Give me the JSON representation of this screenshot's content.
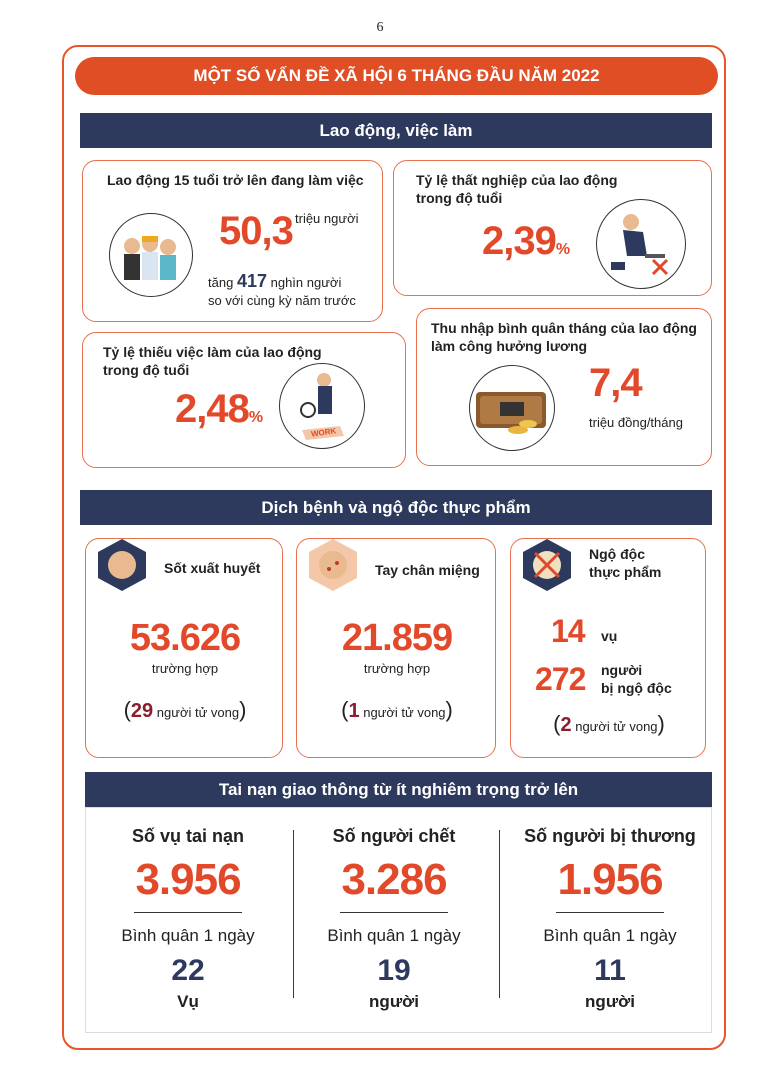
{
  "page_number": "6",
  "title": "MỘT SỐ VẤN ĐỀ XÃ HỘI 6 THÁNG ĐẦU NĂM 2022",
  "labor": {
    "heading": "Lao động, việc làm",
    "employed": {
      "title": "Lao động 15 tuổi trở lên đang làm việc",
      "value": "50,3",
      "unit": "triệu người",
      "note_prefix": "tăng",
      "note_value": "417",
      "note_suffix": "nghìn người",
      "note_line2": "so với cùng kỳ năm trước"
    },
    "unemployment": {
      "title": [
        "Tỷ lệ thất nghiệp của lao động",
        "trong độ tuổi"
      ],
      "value": "2,39",
      "unit": "%"
    },
    "underemployment": {
      "title": [
        "Tỷ lệ thiếu việc làm của lao động",
        "trong độ tuổi"
      ],
      "value": "2,48",
      "unit": "%",
      "icon_text": "WORK"
    },
    "income": {
      "title": [
        "Thu nhập bình quân tháng của lao động",
        "làm công hưởng lương"
      ],
      "value": "7,4",
      "unit": "triệu đồng/tháng"
    }
  },
  "disease": {
    "heading": "Dịch bệnh và ngộ độc thực phẩm",
    "dengue": {
      "title": "Sốt xuất huyết",
      "value": "53.626",
      "unit": "trường hợp",
      "open": "(",
      "deaths": "29",
      "deaths_text": "người tử vong",
      "close": ")"
    },
    "hfmd": {
      "title": "Tay chân miệng",
      "value": "21.859",
      "unit": "trường hợp",
      "open": "(",
      "deaths": "1",
      "deaths_text": "người tử vong",
      "close": ")"
    },
    "poisoning": {
      "title": [
        "Ngộ độc",
        "thực phẩm"
      ],
      "cases": "14",
      "cases_unit": "vụ",
      "people": "272",
      "people_unit": [
        "người",
        "bị ngộ độc"
      ],
      "open": "(",
      "deaths": "2",
      "deaths_text": "người tử vong",
      "close": ")"
    }
  },
  "traffic": {
    "heading": "Tai nạn giao thông từ ít nghiêm trọng trở lên",
    "columns": [
      {
        "title": "Số vụ tai nạn",
        "value": "3.956",
        "avg_label": "Bình quân 1 ngày",
        "avg": "22",
        "avg_unit": "Vụ"
      },
      {
        "title": "Số người chết",
        "value": "3.286",
        "avg_label": "Bình quân 1 ngày",
        "avg": "19",
        "avg_unit": "người"
      },
      {
        "title": "Số người bị thương",
        "value": "1.956",
        "avg_label": "Bình quân 1 ngày",
        "avg": "11",
        "avg_unit": "người"
      }
    ]
  }
}
